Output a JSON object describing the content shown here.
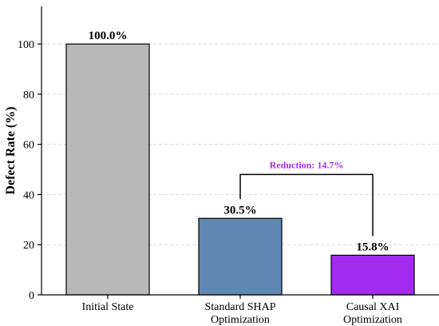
{
  "chart_data": {
    "type": "bar",
    "title": "",
    "xlabel": "",
    "ylabel": "Defect Rate (%)",
    "ylim": [
      0,
      115
    ],
    "yticks": [
      0,
      20,
      40,
      60,
      80,
      100
    ],
    "grid": true,
    "categories": [
      [
        "Initial State"
      ],
      [
        "Standard SHAP",
        "Optimization"
      ],
      [
        "Causal XAI",
        "Optimization"
      ]
    ],
    "values": [
      100.0,
      30.5,
      15.8
    ],
    "value_labels": [
      "100.0%",
      "30.5%",
      "15.8%"
    ],
    "colors": [
      "#b8b8b8",
      "#5f87b3",
      "#a32bf0"
    ],
    "annotation": {
      "text": "Reduction: 14.7%",
      "color": "#a32bf0",
      "from_index": 1,
      "to_index": 2,
      "y": 48
    }
  }
}
